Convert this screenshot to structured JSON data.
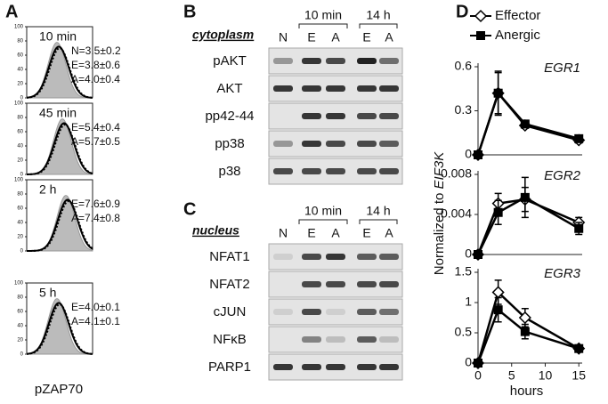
{
  "panel_a": {
    "label": "A",
    "yticks": [
      0,
      20,
      40,
      60,
      80,
      100
    ],
    "xlabel": "pZAP70",
    "plots": [
      {
        "time": "10 min",
        "stats": [
          "N=3.5±0.2",
          "E=3.8±0.6",
          "A=4.0±0.4"
        ]
      },
      {
        "time": "45 min",
        "stats": [
          "E=5.4±0.4",
          "A=5.7±0.5"
        ]
      },
      {
        "time": "2 h",
        "stats": [
          "E=7.6±0.9",
          "A=7.4±0.8"
        ]
      },
      {
        "time": "5 h",
        "stats": [
          "E=4.0±0.1",
          "A=4.1±0.1"
        ]
      }
    ]
  },
  "panel_b": {
    "label": "B",
    "section": "cytoplasm",
    "groups": [
      "10 min",
      "14 h"
    ],
    "lanes": [
      "N",
      "E",
      "A",
      "E",
      "A"
    ],
    "rows": [
      "pAKT",
      "AKT",
      "pp42-44",
      "pp38",
      "p38"
    ]
  },
  "panel_c": {
    "label": "C",
    "section": "nucleus",
    "groups": [
      "10 min",
      "14 h"
    ],
    "lanes": [
      "N",
      "E",
      "A",
      "E",
      "A"
    ],
    "rows": [
      "NFAT1",
      "NFAT2",
      "cJUN",
      "NFκB",
      "PARP1"
    ]
  },
  "panel_d": {
    "label": "D",
    "ylabel": "Normalized to",
    "ylabel_gene": "EIF3K"
  },
  "chart_data": [
    {
      "type": "line",
      "title": "EGR1",
      "x": [
        0,
        3,
        7,
        15
      ],
      "xlim": [
        0,
        15.5
      ],
      "ylim": [
        0,
        0.6
      ],
      "yticks": [
        0,
        0.3,
        0.6
      ],
      "series": [
        {
          "name": "Effector",
          "marker": "diamond",
          "color": "#000000",
          "values": [
            0,
            0.42,
            0.2,
            0.1
          ],
          "errors": [
            0,
            0.14,
            0.02,
            0.02
          ]
        },
        {
          "name": "Anergic",
          "marker": "square",
          "color": "#000000",
          "values": [
            0,
            0.42,
            0.21,
            0.11
          ],
          "errors": [
            0,
            0.15,
            0.02,
            0.02
          ]
        }
      ]
    },
    {
      "type": "line",
      "title": "EGR2",
      "x": [
        0,
        3,
        7,
        15
      ],
      "xlim": [
        0,
        15.5
      ],
      "ylim": [
        0,
        0.008
      ],
      "yticks": [
        0,
        0.004,
        0.008
      ],
      "series": [
        {
          "marker": "diamond",
          "color": "#000000",
          "values": [
            0,
            0.0051,
            0.0055,
            0.0032
          ],
          "errors": [
            0,
            0.001,
            0.0012,
            0.0005
          ]
        },
        {
          "marker": "square",
          "color": "#000000",
          "values": [
            0,
            0.0042,
            0.0057,
            0.0026
          ],
          "errors": [
            0,
            0.0012,
            0.002,
            0.0006
          ]
        }
      ]
    },
    {
      "type": "line",
      "title": "EGR3",
      "x": [
        0,
        3,
        7,
        15
      ],
      "xlim": [
        0,
        15.5
      ],
      "ylim": [
        0,
        1.5
      ],
      "yticks": [
        0,
        0.5,
        1,
        1.5
      ],
      "xticks": [
        0,
        5,
        10,
        15
      ],
      "xlabel": "hours",
      "series": [
        {
          "marker": "diamond",
          "color": "#000000",
          "values": [
            0,
            1.17,
            0.75,
            0.24
          ],
          "errors": [
            0,
            0.2,
            0.15,
            0.04
          ]
        },
        {
          "marker": "square",
          "color": "#000000",
          "values": [
            0,
            0.88,
            0.52,
            0.24
          ],
          "errors": [
            0,
            0.2,
            0.12,
            0.04
          ]
        }
      ]
    }
  ]
}
